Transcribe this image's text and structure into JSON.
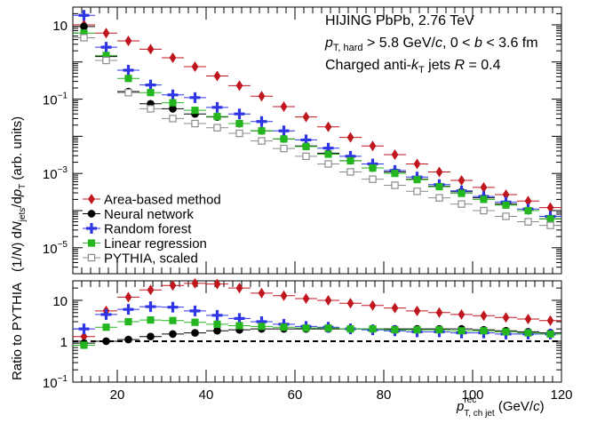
{
  "chart_data": [
    {
      "type": "scatter",
      "panel": "top",
      "ylabel_parts": [
        "(1/",
        "N",
        ") d",
        "N",
        "jets",
        "/d",
        "p",
        "T",
        " (arb. units)"
      ],
      "y_scale": "log",
      "ylim": [
        2e-06,
        30
      ],
      "xlim": [
        10,
        120
      ],
      "y_ticks": [
        {
          "value": 10,
          "base": "10",
          "exp": ""
        },
        {
          "value": 0.1,
          "base": "10",
          "exp": "−1"
        },
        {
          "value": 0.001,
          "base": "10",
          "exp": "−3"
        },
        {
          "value": 1e-05,
          "base": "10",
          "exp": "−5"
        }
      ],
      "annotation": {
        "line1": "HIJING PbPb, 2.76 TeV",
        "line2_parts": [
          "p",
          "T, hard",
          " > 5.8 GeV/",
          "c",
          ", 0 < ",
          "b",
          " < 3.6 fm"
        ],
        "line3_parts": [
          "Charged anti-",
          "k",
          "T",
          " jets ",
          "R",
          " = 0.4"
        ]
      },
      "legend_position": "bottom-left",
      "x": [
        12.5,
        17.5,
        22.5,
        27.5,
        32.5,
        37.5,
        42.5,
        47.5,
        52.5,
        57.5,
        62.5,
        67.5,
        72.5,
        77.5,
        82.5,
        87.5,
        92.5,
        97.5,
        102.5,
        107.5,
        112.5,
        117.5
      ],
      "series": [
        {
          "name": "Area-based method",
          "marker": "diamond",
          "color": "#c0161e",
          "values": [
            10,
            6.0,
            3.7,
            2.2,
            1.3,
            0.75,
            0.42,
            0.23,
            0.12,
            0.063,
            0.033,
            0.018,
            0.0093,
            0.0055,
            0.0032,
            0.0018,
            0.0011,
            0.00065,
            0.00042,
            0.00027,
            0.00018,
            0.00012
          ]
        },
        {
          "name": "Neural network",
          "marker": "circle",
          "color": "#000000",
          "values": [
            9.0,
            1.4,
            0.16,
            0.075,
            0.055,
            0.04,
            0.033,
            0.022,
            0.014,
            0.0085,
            0.0055,
            0.0035,
            0.0022,
            0.0014,
            0.0011,
            0.0007,
            0.00045,
            0.00032,
            0.00022,
            0.00015,
            0.0001,
            6e-05
          ]
        },
        {
          "name": "Random forest",
          "marker": "cross",
          "color": "#2d35e6",
          "values": [
            18,
            2.5,
            0.6,
            0.24,
            0.13,
            0.11,
            0.06,
            0.04,
            0.025,
            0.014,
            0.008,
            0.0048,
            0.0029,
            0.0018,
            0.0012,
            0.0008,
            0.0005,
            0.00034,
            0.00024,
            0.00017,
            0.00011,
            7e-05
          ]
        },
        {
          "name": "Linear regression",
          "marker": "square",
          "color": "#24b61f",
          "values": [
            6.0,
            1.5,
            0.36,
            0.15,
            0.08,
            0.05,
            0.034,
            0.022,
            0.014,
            0.0085,
            0.0053,
            0.0033,
            0.0022,
            0.0014,
            0.001,
            0.00068,
            0.00044,
            0.00029,
            0.0002,
            0.00014,
            0.0001,
            6e-05
          ]
        },
        {
          "name": "PYTHIA, scaled",
          "marker": "open-square",
          "color": "#8c8c8c",
          "values": [
            4.5,
            1.1,
            0.15,
            0.055,
            0.03,
            0.022,
            0.017,
            0.012,
            0.0075,
            0.0047,
            0.0029,
            0.0018,
            0.0011,
            0.0007,
            0.00048,
            0.00033,
            0.00022,
            0.00015,
            0.0001,
            7e-05,
            5e-05,
            4e-05
          ]
        }
      ]
    },
    {
      "type": "scatter",
      "panel": "bottom",
      "ylabel": "Ratio to PYTHIA",
      "y_scale": "log",
      "ylim": [
        0.1,
        30
      ],
      "xlim": [
        10,
        120
      ],
      "reference_line": 1,
      "y_ticks": [
        {
          "value": 10,
          "base": "10",
          "exp": ""
        },
        {
          "value": 1,
          "base": "1",
          "exp": ""
        },
        {
          "value": 0.1,
          "base": "10",
          "exp": "−1"
        }
      ],
      "x_ticks": [
        20,
        40,
        60,
        80,
        100,
        120
      ],
      "xlabel_parts": [
        "p",
        "rec",
        "T, ch jet",
        " (GeV/",
        "c",
        ")"
      ],
      "x": [
        12.5,
        17.5,
        22.5,
        27.5,
        32.5,
        37.5,
        42.5,
        47.5,
        52.5,
        57.5,
        62.5,
        67.5,
        72.5,
        77.5,
        82.5,
        87.5,
        92.5,
        97.5,
        102.5,
        107.5,
        112.5,
        117.5
      ],
      "series": [
        {
          "name": "Area-based method",
          "marker": "diamond",
          "color": "#c0161e",
          "values": [
            1.3,
            5.5,
            12,
            18,
            23,
            26,
            25,
            20,
            15,
            13,
            11,
            10,
            8.5,
            7.5,
            6.5,
            5.5,
            5.0,
            4.5,
            4.2,
            3.8,
            3.5,
            3.2
          ]
        },
        {
          "name": "Neural network",
          "marker": "circle",
          "color": "#000000",
          "values": [
            0.9,
            1.0,
            1.1,
            1.3,
            1.5,
            1.6,
            1.8,
            1.9,
            2.0,
            2.0,
            2.0,
            2.0,
            2.0,
            2.0,
            2.0,
            2.0,
            2.0,
            2.0,
            1.9,
            1.8,
            1.7,
            1.6
          ]
        },
        {
          "name": "Random forest",
          "marker": "cross",
          "color": "#2d35e6",
          "values": [
            2.0,
            4.5,
            6.0,
            7.0,
            6.8,
            5.5,
            4.3,
            3.6,
            3.0,
            2.6,
            2.3,
            2.2,
            2.0,
            1.9,
            1.8,
            1.7,
            1.7,
            1.6,
            1.6,
            1.5,
            1.5,
            1.5
          ]
        },
        {
          "name": "Linear regression",
          "marker": "square",
          "color": "#24b61f",
          "values": [
            0.8,
            2.2,
            3.0,
            3.3,
            3.2,
            2.9,
            2.6,
            2.4,
            2.3,
            2.2,
            2.1,
            2.1,
            2.0,
            2.0,
            1.9,
            1.9,
            1.9,
            1.8,
            1.8,
            1.7,
            1.6,
            1.5
          ]
        }
      ]
    }
  ]
}
